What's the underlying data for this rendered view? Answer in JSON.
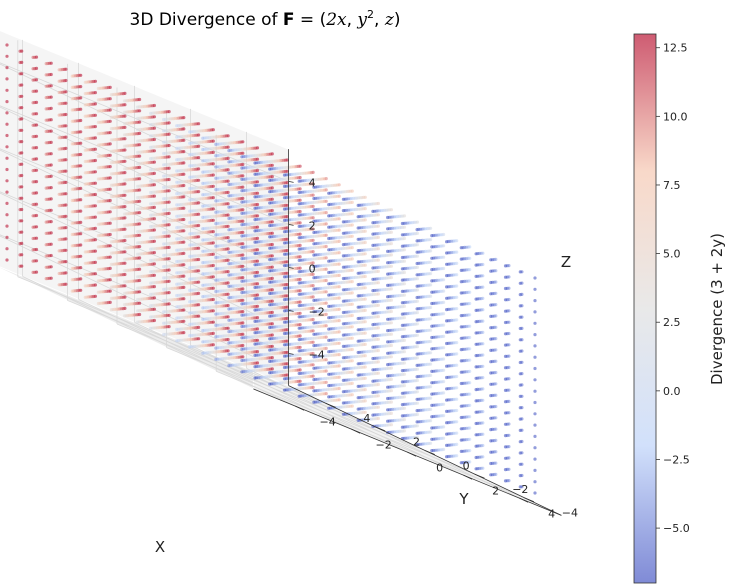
{
  "chart_data": {
    "type": "scatter",
    "projection": "3d",
    "title_prefix": "3D Divergence of ",
    "title_field": "F",
    "title_eq": " = (",
    "title_comp1": "2x",
    "title_sep1": ", ",
    "title_comp2": "y",
    "title_comp2_exp": "2",
    "title_sep2": ", ",
    "title_comp3": "z",
    "title_close": ")",
    "xlabel": "X",
    "ylabel": "Y",
    "zlabel": "Z",
    "x_ticks": [
      "−4",
      "−2",
      "0",
      "2",
      "4"
    ],
    "y_ticks": [
      "−4",
      "−2",
      "0",
      "2",
      "4"
    ],
    "z_ticks": [
      "−4",
      "−2",
      "0",
      "2",
      "4"
    ],
    "x_tick_values": [
      -4,
      -2,
      0,
      2,
      4
    ],
    "y_tick_values": [
      -4,
      -2,
      0,
      2,
      4
    ],
    "z_tick_values": [
      -4,
      -2,
      0,
      2,
      4
    ],
    "xlim": [
      -5.5,
      5.5
    ],
    "ylim": [
      -5.5,
      5.5
    ],
    "zlim": [
      -5.5,
      5.5
    ],
    "grid_range": [
      -5,
      5
    ],
    "grid_points_per_axis": 20,
    "value_formula": "3 + 2y",
    "colormap": "coolwarm",
    "colormap_stops": [
      "#3b4cc0",
      "#b9d0f9",
      "#dddddd",
      "#f5c4ac",
      "#b40426"
    ],
    "point_alpha": 0.55,
    "colorbar": {
      "label": "Divergence (3 + 2y)",
      "range": [
        -7,
        13
      ],
      "ticks": [
        "−5.0",
        "−2.5",
        "0.0",
        "2.5",
        "5.0",
        "7.5",
        "10.0",
        "12.5"
      ],
      "tick_values": [
        -5,
        -2.5,
        0,
        2.5,
        5,
        7.5,
        10,
        12.5
      ]
    }
  }
}
